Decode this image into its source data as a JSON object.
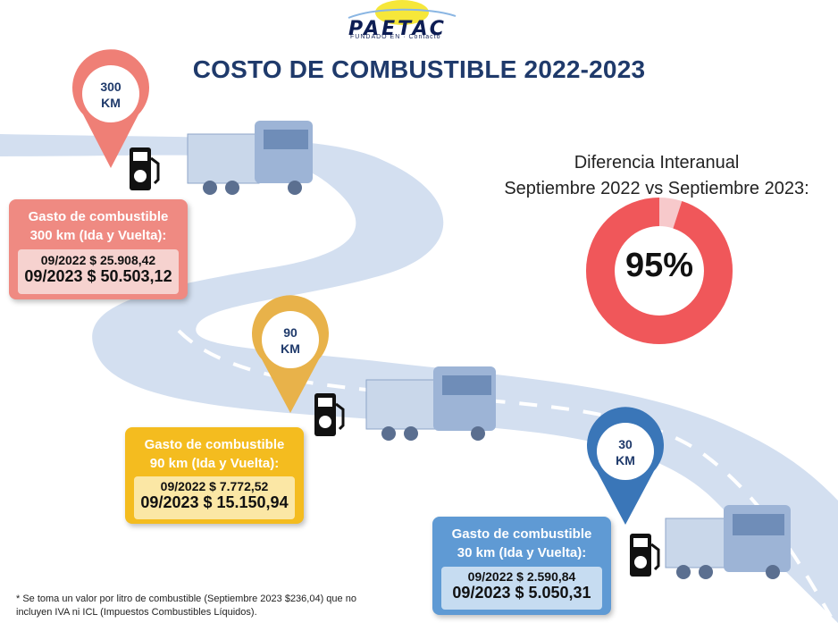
{
  "logo": {
    "text": "PAETAC",
    "sub": "FUNDADO EN · Contacto"
  },
  "title": "COSTO DE COMBUSTIBLE 2022-2023",
  "pins": [
    {
      "line1": "300",
      "line2": "KM",
      "color": "#ef7f76"
    },
    {
      "line1": "90",
      "line2": "KM",
      "color": "#e8b24a"
    },
    {
      "line1": "30",
      "line2": "KM",
      "color": "#3a76b8"
    }
  ],
  "cards": [
    {
      "hdr1": "Gasto de combustible",
      "hdr2": "300 km (Ida y Vuelta):",
      "v2022": "09/2022 $ 25.908,42",
      "v2023": "09/2023 $ 50.503,12",
      "bg": "#ef8a82",
      "inner": "#f6d2cf"
    },
    {
      "hdr1": "Gasto de combustible",
      "hdr2": "90 km (Ida y Vuelta):",
      "v2022": "09/2022 $ 7.772,52",
      "v2023": "09/2023 $ 15.150,94",
      "bg": "#f4bc1f",
      "inner": "#fbe7a5"
    },
    {
      "hdr1": "Gasto de combustible",
      "hdr2": "30 km (Ida y Vuelta):",
      "v2022": "09/2022 $ 2.590,84",
      "v2023": "09/2023 $ 5.050,31",
      "bg": "#5f9ad4",
      "inner": "#c6dcf1"
    }
  ],
  "difference": {
    "line1": "Diferencia Interanual",
    "line2": "Septiembre 2022 vs Septiembre 2023:",
    "percent_label": "95%",
    "percent_value": 95,
    "ring_color": "#f0575a",
    "ring_rest_color": "#f7c9cb"
  },
  "footnote": {
    "line1": "* Se toma un valor por litro de combustible (Septiembre 2023 $236,04) que no",
    "line2": "incluyen IVA ni ICL (Impuestos Combustibles Líquidos)."
  },
  "icons": [
    "fuel-pump-icon",
    "truck-icon",
    "map-pin-icon"
  ]
}
